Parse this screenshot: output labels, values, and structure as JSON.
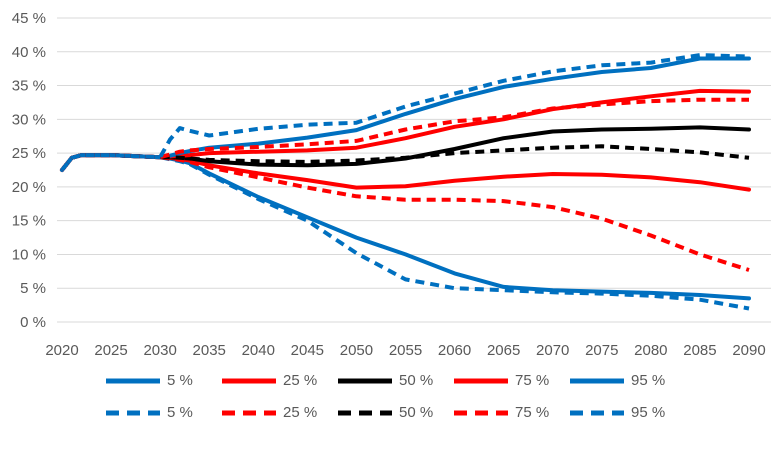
{
  "chart_data": {
    "type": "line",
    "title": "",
    "xlabel": "",
    "ylabel": "",
    "grid": true,
    "legend_position": "bottom",
    "colors": {
      "blue": "#0070C0",
      "red": "#FF0000",
      "black": "#000000",
      "gridline": "#D9D9D9",
      "tick_label": "#595959",
      "background": "#FFFFFF"
    },
    "ylim": [
      0,
      45
    ],
    "xlim": [
      2020,
      2090
    ],
    "ytick_values": [
      0,
      5,
      10,
      15,
      20,
      25,
      30,
      35,
      40,
      45
    ],
    "ytick_labels": [
      "0 %",
      "5 %",
      "10 %",
      "15 %",
      "20 %",
      "25 %",
      "30 %",
      "35 %",
      "40 %",
      "45 %"
    ],
    "xtick_values": [
      2020,
      2025,
      2030,
      2035,
      2040,
      2045,
      2050,
      2055,
      2060,
      2065,
      2070,
      2075,
      2080,
      2085,
      2090
    ],
    "xtick_labels": [
      "2020",
      "2025",
      "2030",
      "2035",
      "2040",
      "2045",
      "2050",
      "2055",
      "2060",
      "2065",
      "2070",
      "2075",
      "2080",
      "2085",
      "2090"
    ],
    "x": [
      2020,
      2021,
      2022,
      2025,
      2030,
      2031,
      2032,
      2033,
      2035,
      2040,
      2045,
      2050,
      2055,
      2060,
      2065,
      2070,
      2075,
      2080,
      2085,
      2090
    ],
    "series": [
      {
        "name": "5 %",
        "style": "solid",
        "color": "#0070C0",
        "values": [
          22.5,
          24.3,
          24.7,
          24.7,
          24.4,
          24.2,
          23.9,
          23.5,
          22.0,
          18.5,
          15.5,
          12.5,
          10.0,
          7.2,
          5.2,
          4.7,
          4.5,
          4.3,
          4.0,
          3.5
        ]
      },
      {
        "name": "25 %",
        "style": "solid",
        "color": "#FF0000",
        "values": [
          22.5,
          24.3,
          24.7,
          24.7,
          24.4,
          24.3,
          24.1,
          23.9,
          23.2,
          22.0,
          21.0,
          19.9,
          20.1,
          20.9,
          21.5,
          21.9,
          21.8,
          21.4,
          20.7,
          19.6
        ]
      },
      {
        "name": "50 %",
        "style": "solid",
        "color": "#000000",
        "values": [
          22.5,
          24.3,
          24.7,
          24.7,
          24.4,
          24.4,
          24.3,
          24.2,
          23.8,
          23.3,
          23.2,
          23.4,
          24.2,
          25.6,
          27.2,
          28.2,
          28.5,
          28.6,
          28.8,
          28.5
        ]
      },
      {
        "name": "75 %",
        "style": "solid",
        "color": "#FF0000",
        "values": [
          22.5,
          24.3,
          24.7,
          24.7,
          24.4,
          24.5,
          24.6,
          24.7,
          25.0,
          25.2,
          25.4,
          25.8,
          27.2,
          28.9,
          30.0,
          31.5,
          32.5,
          33.4,
          34.2,
          34.1
        ]
      },
      {
        "name": "95 %",
        "style": "solid",
        "color": "#0070C0",
        "values": [
          22.5,
          24.3,
          24.7,
          24.7,
          24.4,
          24.6,
          25.0,
          25.3,
          25.8,
          26.4,
          27.3,
          28.4,
          30.8,
          33.0,
          34.8,
          36.0,
          37.0,
          37.6,
          39.0,
          39.0
        ]
      },
      {
        "name": "5 %",
        "style": "dashed",
        "color": "#0070C0",
        "values": [
          22.5,
          24.3,
          24.7,
          24.7,
          24.4,
          24.1,
          23.8,
          23.4,
          21.8,
          18.2,
          15.0,
          10.2,
          6.3,
          5.0,
          4.7,
          4.4,
          4.2,
          3.9,
          3.3,
          2.0
        ]
      },
      {
        "name": "25 %",
        "style": "dashed",
        "color": "#FF0000",
        "values": [
          22.5,
          24.3,
          24.7,
          24.7,
          24.4,
          24.2,
          24.0,
          23.7,
          22.9,
          21.4,
          19.9,
          18.6,
          18.1,
          18.1,
          17.9,
          17.0,
          15.3,
          12.8,
          10.0,
          7.7
        ]
      },
      {
        "name": "50 %",
        "style": "dashed",
        "color": "#000000",
        "values": [
          22.5,
          24.3,
          24.7,
          24.7,
          24.4,
          24.4,
          24.3,
          24.2,
          24.0,
          23.8,
          23.7,
          23.9,
          24.3,
          25.0,
          25.4,
          25.8,
          26.0,
          25.6,
          25.1,
          24.3
        ]
      },
      {
        "name": "75 %",
        "style": "dashed",
        "color": "#FF0000",
        "values": [
          22.5,
          24.3,
          24.7,
          24.7,
          24.4,
          24.8,
          25.2,
          25.4,
          25.6,
          25.9,
          26.3,
          26.8,
          28.5,
          29.7,
          30.3,
          31.6,
          32.2,
          32.7,
          32.9,
          32.9
        ]
      },
      {
        "name": "95 %",
        "style": "dashed",
        "color": "#0070C0",
        "values": [
          22.5,
          24.3,
          24.7,
          24.7,
          24.4,
          27.0,
          28.7,
          28.3,
          27.6,
          28.6,
          29.2,
          29.5,
          31.9,
          33.8,
          35.7,
          37.1,
          38.0,
          38.4,
          39.5,
          39.3
        ]
      }
    ],
    "legend": {
      "rows": [
        {
          "style": "solid",
          "entries": [
            {
              "label": "5 %",
              "color": "#0070C0"
            },
            {
              "label": "25 %",
              "color": "#FF0000"
            },
            {
              "label": "50 %",
              "color": "#000000"
            },
            {
              "label": "75 %",
              "color": "#FF0000"
            },
            {
              "label": "95 %",
              "color": "#0070C0"
            }
          ]
        },
        {
          "style": "dashed",
          "entries": [
            {
              "label": "5 %",
              "color": "#0070C0"
            },
            {
              "label": "25 %",
              "color": "#FF0000"
            },
            {
              "label": "50 %",
              "color": "#000000"
            },
            {
              "label": "75 %",
              "color": "#FF0000"
            },
            {
              "label": "95 %",
              "color": "#0070C0"
            }
          ]
        }
      ]
    }
  }
}
